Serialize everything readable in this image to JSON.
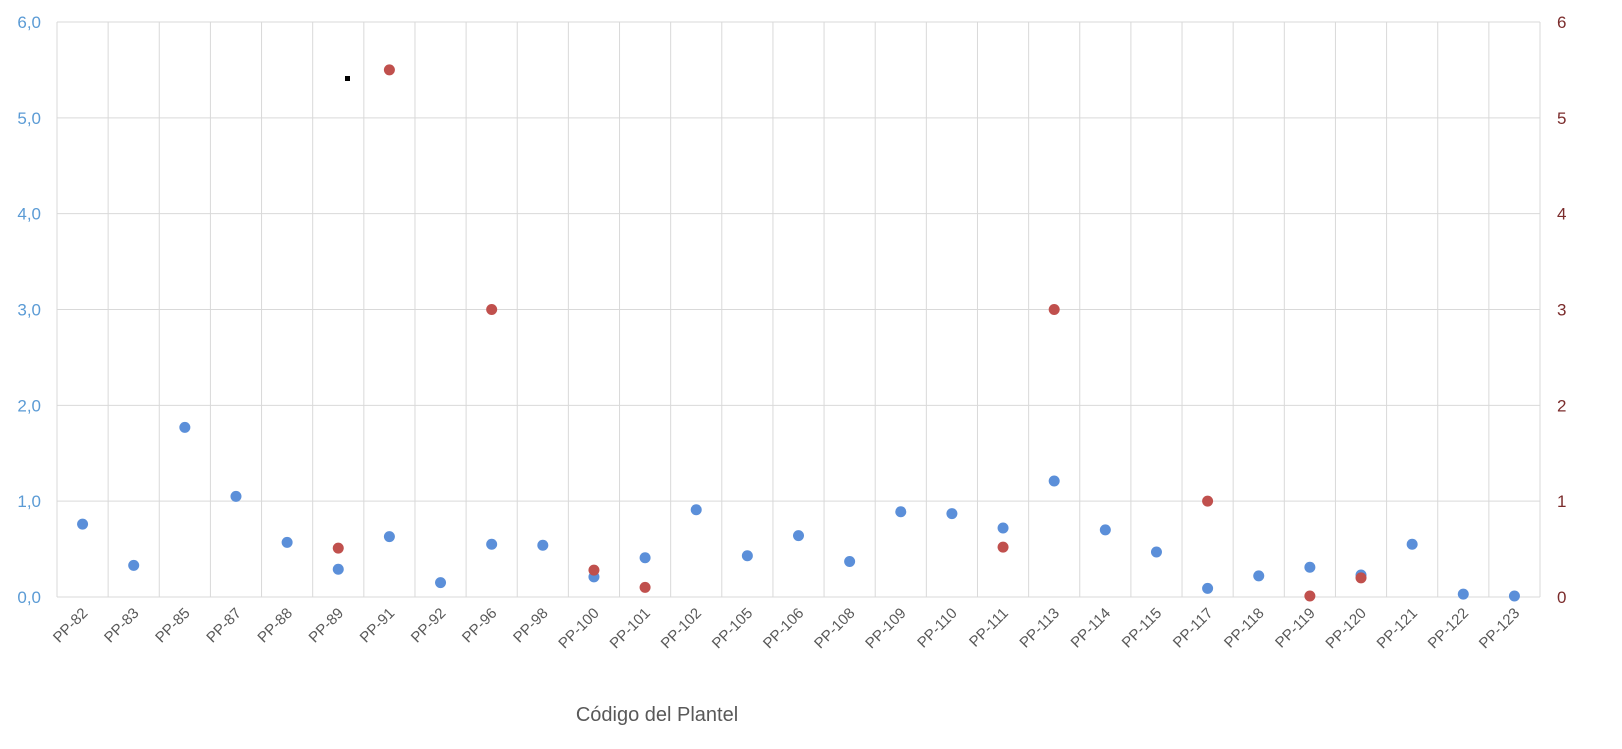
{
  "chart_data": {
    "type": "scatter",
    "xlabel": "Código del Plantel",
    "categories": [
      "PP-82",
      "PP-83",
      "PP-85",
      "PP-87",
      "PP-88",
      "PP-89",
      "PP-91",
      "PP-92",
      "PP-96",
      "PP-98",
      "PP-100",
      "PP-101",
      "PP-102",
      "PP-105",
      "PP-106",
      "PP-108",
      "PP-109",
      "PP-110",
      "PP-111",
      "PP-113",
      "PP-114",
      "PP-115",
      "PP-117",
      "PP-118",
      "PP-119",
      "PP-120",
      "PP-121",
      "PP-122",
      "PP-123"
    ],
    "left_axis": {
      "ylim": [
        0,
        6
      ],
      "ticks": [
        "0,0",
        "1,0",
        "2,0",
        "3,0",
        "4,0",
        "5,0",
        "6,0"
      ],
      "color": "#5b9bd5"
    },
    "right_axis": {
      "ylim": [
        0,
        6
      ],
      "ticks": [
        "0",
        "1",
        "2",
        "3",
        "4",
        "5",
        "6"
      ],
      "color": "#7b2c2c"
    },
    "grid": true,
    "series": [
      {
        "axis": "left",
        "color": "#5b8fd9",
        "values": [
          0.76,
          0.33,
          1.77,
          1.05,
          0.57,
          0.29,
          0.63,
          0.15,
          0.55,
          0.54,
          0.21,
          0.41,
          0.91,
          0.43,
          0.64,
          0.37,
          0.89,
          0.87,
          0.72,
          1.21,
          0.7,
          0.47,
          0.09,
          0.22,
          0.31,
          0.23,
          0.55,
          0.03,
          0.01
        ]
      },
      {
        "axis": "right",
        "color": "#c0504d",
        "values": [
          null,
          null,
          null,
          null,
          null,
          0.51,
          5.5,
          null,
          3.0,
          null,
          0.28,
          0.1,
          null,
          null,
          null,
          null,
          null,
          null,
          0.52,
          3.0,
          null,
          null,
          1.0,
          null,
          0.01,
          0.2,
          null,
          null,
          null
        ]
      }
    ]
  }
}
